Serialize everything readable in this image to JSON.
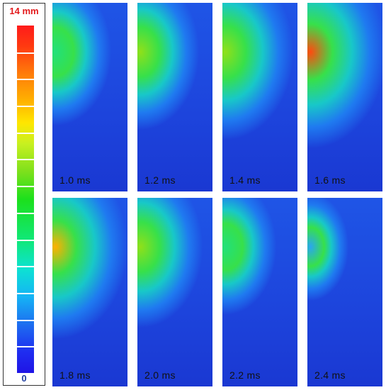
{
  "color_scale": {
    "max_label": "14 mm",
    "min_label": "0",
    "colors": [
      "#ff1b1b",
      "#ff7d0a",
      "#ffe600",
      "#1ce01c",
      "#0de2d2",
      "#1d6ef0",
      "#1f14e6"
    ]
  },
  "frames": [
    {
      "label": "1.0 ms",
      "intensity": 0.55
    },
    {
      "label": "1.2 ms",
      "intensity": 0.62
    },
    {
      "label": "1.4 ms",
      "intensity": 0.8
    },
    {
      "label": "1.6 ms",
      "intensity": 0.95
    },
    {
      "label": "1.8 ms",
      "intensity": 0.88
    },
    {
      "label": "2.0 ms",
      "intensity": 0.68
    },
    {
      "label": "2.2 ms",
      "intensity": 0.45
    },
    {
      "label": "2.4 ms",
      "intensity": 0.2
    }
  ]
}
